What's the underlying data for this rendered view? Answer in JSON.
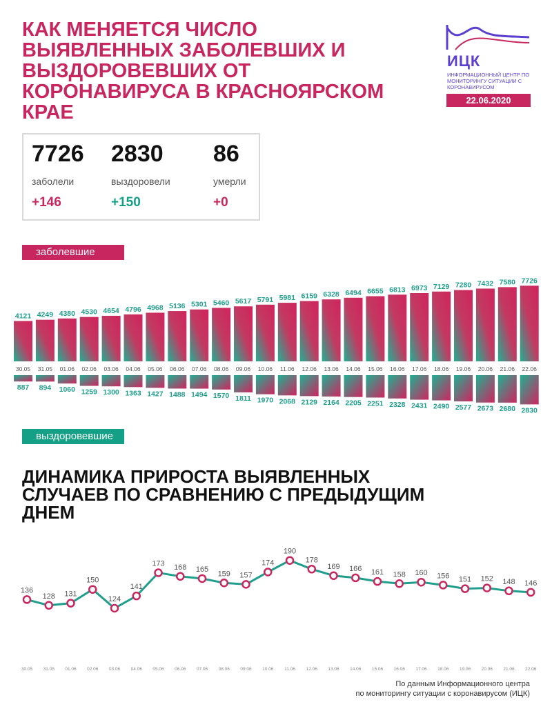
{
  "header": {
    "title": "Как меняется число выявленных заболевших и выздоровевших от коронавируса в Красноярском крае"
  },
  "logo": {
    "abbr": "ИЦК",
    "sub": "Информационный центр по мониторингу ситуации с коронавирусом"
  },
  "date": "22.06.2020",
  "stats": [
    {
      "value": "7726",
      "label": "заболели",
      "delta": "+146"
    },
    {
      "value": "2830",
      "label": "выздоровели",
      "delta": "+150"
    },
    {
      "value": "86",
      "label": "умерли",
      "delta": "+0"
    }
  ],
  "labels": {
    "sick": "заболевшие",
    "recovered": "выздоровевшие"
  },
  "subtitle": "Динамика прироста выявленных случаев по сравнению с предыдущим днем",
  "footer": {
    "line1": "По данным Информационного центра",
    "line2": "по мониторингу ситуации с коронавирусом (ИЦК)"
  },
  "colors": {
    "accent": "#c8265e",
    "teal": "#14a086",
    "line": "#1f9e8c"
  },
  "chart_data": [
    {
      "type": "bar",
      "categories": [
        "30.05",
        "31.05",
        "01.06",
        "02.06",
        "03.06",
        "04.06",
        "05.06",
        "06.06",
        "07.06",
        "08.06",
        "09.06",
        "10.06",
        "11.06",
        "12.06",
        "13.06",
        "14.06",
        "15.06",
        "16.06",
        "17.06",
        "18.06",
        "19.06",
        "20.06",
        "21.06",
        "22.06"
      ],
      "series": [
        {
          "name": "заболевшие",
          "values": [
            4121,
            4249,
            4380,
            4530,
            4654,
            4796,
            4968,
            5136,
            5301,
            5460,
            5617,
            5791,
            5981,
            6159,
            6328,
            6494,
            6655,
            6813,
            6973,
            7129,
            7280,
            7432,
            7580,
            7726
          ]
        },
        {
          "name": "выздоровевшие",
          "values": [
            887,
            894,
            1060,
            1259,
            1300,
            1363,
            1427,
            1488,
            1494,
            1570,
            1811,
            1970,
            2068,
            2129,
            2164,
            2205,
            2251,
            2328,
            2431,
            2490,
            2577,
            2673,
            2680,
            2830
          ]
        }
      ]
    },
    {
      "type": "line",
      "x": [
        "30.05",
        "31.05",
        "01.06",
        "02.06",
        "03.06",
        "04.06",
        "05.06",
        "06.06",
        "07.06",
        "08.06",
        "09.06",
        "10.06",
        "11.06",
        "12.06",
        "13.06",
        "14.06",
        "15.06",
        "16.06",
        "17.06",
        "18.06",
        "19.06",
        "20.06",
        "21.06",
        "22.06"
      ],
      "values": [
        136,
        128,
        131,
        150,
        124,
        141,
        173,
        168,
        165,
        159,
        157,
        174,
        190,
        178,
        169,
        166,
        161,
        158,
        160,
        156,
        151,
        152,
        148,
        146
      ]
    }
  ]
}
